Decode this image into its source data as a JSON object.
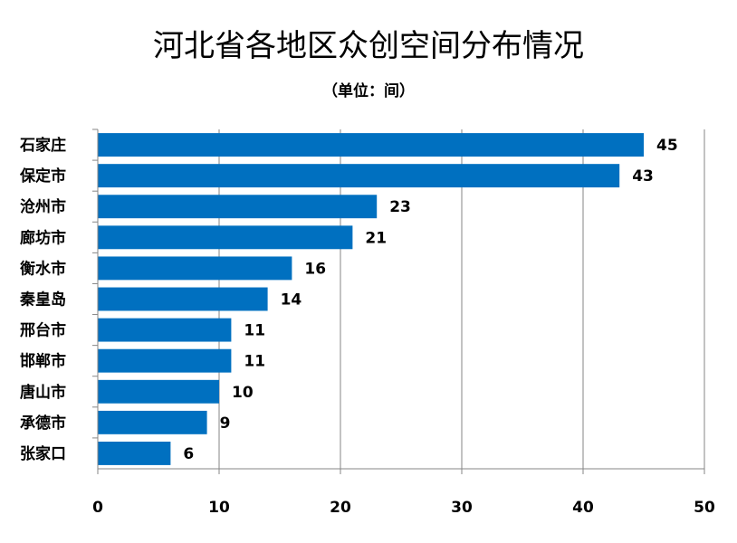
{
  "chart_data": {
    "type": "bar",
    "orientation": "horizontal",
    "title": "河北省各地区众创空间分布情况",
    "subtitle": "（单位：间）",
    "categories": [
      "石家庄",
      "保定市",
      "沧州市",
      "廊坊市",
      "衡水市",
      "秦皇岛",
      "邢台市",
      "邯郸市",
      "唐山市",
      "承德市",
      "张家口"
    ],
    "values": [
      45,
      43,
      23,
      21,
      16,
      14,
      11,
      11,
      10,
      9,
      6
    ],
    "xlim": [
      0,
      50
    ],
    "xticks": [
      0,
      10,
      20,
      30,
      40,
      50
    ],
    "grid": true,
    "bar_color": "#0070C0",
    "grid_color": "#868686"
  }
}
